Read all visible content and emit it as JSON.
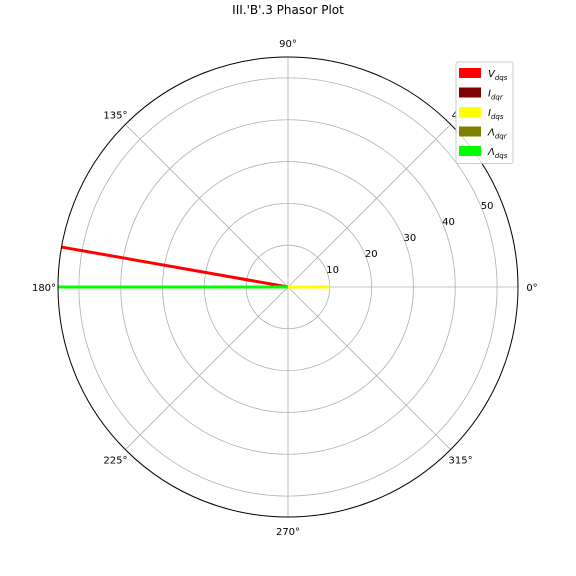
{
  "chart_data": {
    "type": "polar",
    "title": "III.'B'.3 Phasor Plot",
    "rlim": [
      0,
      55
    ],
    "r_ticks": [
      10,
      20,
      30,
      40,
      50
    ],
    "theta_ticks": [
      {
        "deg": 0,
        "label": "0°"
      },
      {
        "deg": 45,
        "label": "45°"
      },
      {
        "deg": 90,
        "label": "90°"
      },
      {
        "deg": 135,
        "label": "135°"
      },
      {
        "deg": 180,
        "label": "180°"
      },
      {
        "deg": 225,
        "label": "225°"
      },
      {
        "deg": 270,
        "label": "270°"
      },
      {
        "deg": 315,
        "label": "315°"
      }
    ],
    "grid": true,
    "legend_position": "upper right",
    "series": [
      {
        "name": "V",
        "sub": "dqs",
        "color": "#ff0000",
        "magnitude": 55,
        "angle_deg": 170
      },
      {
        "name": "I",
        "sub": "dqr",
        "color": "#800000",
        "magnitude": 0,
        "angle_deg": 0
      },
      {
        "name": "I",
        "sub": "dqs",
        "color": "#ffff00",
        "magnitude": 10,
        "angle_deg": 0
      },
      {
        "name": "Λ",
        "sub": "dqr",
        "color": "#808000",
        "magnitude": 55,
        "angle_deg": 180
      },
      {
        "name": "Λ",
        "sub": "dqs",
        "color": "#00ff00",
        "magnitude": 55,
        "angle_deg": 180
      }
    ]
  }
}
